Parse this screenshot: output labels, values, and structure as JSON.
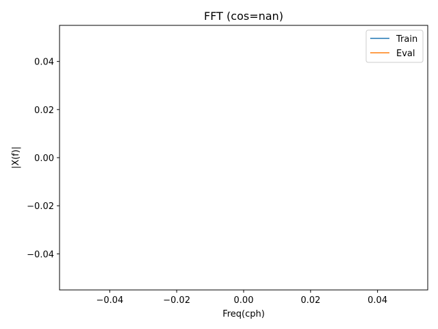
{
  "chart_data": {
    "type": "line",
    "title": "FFT  (cos=nan)",
    "xlabel": "Freq(cph)",
    "ylabel": "|X(f)|",
    "xlim": [
      -0.055,
      0.055
    ],
    "ylim": [
      -0.055,
      0.055
    ],
    "x_ticks": [
      -0.04,
      -0.02,
      0.0,
      0.02,
      0.04
    ],
    "x_tick_labels": [
      "−0.04",
      "−0.02",
      "0.00",
      "0.02",
      "0.04"
    ],
    "y_ticks": [
      0.04,
      0.02,
      0.0,
      -0.02,
      -0.04
    ],
    "y_tick_labels": [
      "0.04",
      "0.02",
      "0.00",
      "−0.02",
      "−0.04"
    ],
    "grid": false,
    "legend_position": "top-right",
    "series": [
      {
        "name": "Train",
        "color": "#1f77b4",
        "x": [],
        "y": []
      },
      {
        "name": "Eval",
        "color": "#ff7f0e",
        "x": [],
        "y": []
      }
    ]
  }
}
